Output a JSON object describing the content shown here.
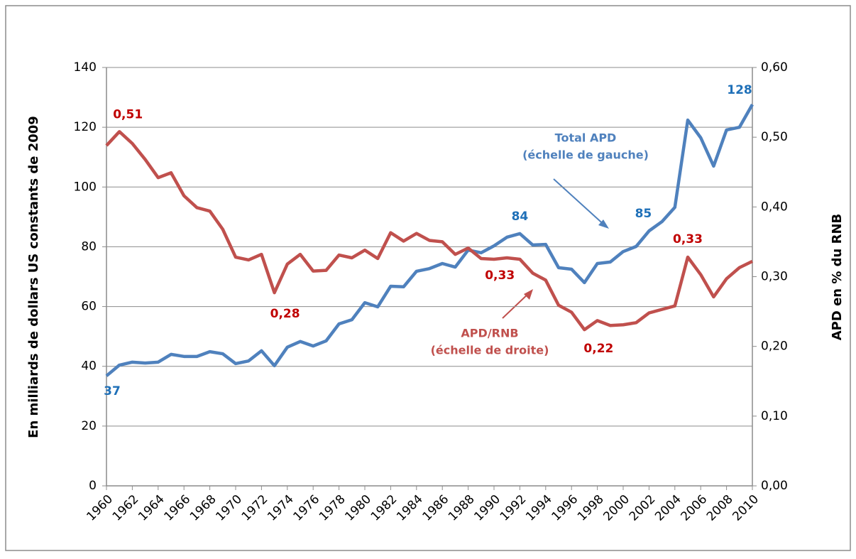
{
  "chart_data": {
    "type": "line",
    "x": [
      1960,
      1961,
      1962,
      1963,
      1964,
      1965,
      1966,
      1967,
      1968,
      1969,
      1970,
      1971,
      1972,
      1973,
      1974,
      1975,
      1976,
      1977,
      1978,
      1979,
      1980,
      1981,
      1982,
      1983,
      1984,
      1985,
      1986,
      1987,
      1988,
      1989,
      1990,
      1991,
      1992,
      1993,
      1994,
      1995,
      1996,
      1997,
      1998,
      1999,
      2000,
      2001,
      2002,
      2003,
      2004,
      2005,
      2006,
      2007,
      2008,
      2009,
      2010
    ],
    "xlim": [
      1960,
      2010
    ],
    "xticks": [
      1960,
      1962,
      1964,
      1966,
      1968,
      1970,
      1972,
      1974,
      1976,
      1978,
      1980,
      1982,
      1984,
      1986,
      1988,
      1990,
      1992,
      1994,
      1996,
      1998,
      2000,
      2002,
      2004,
      2006,
      2008,
      2010
    ],
    "ylabel": "En milliards de dollars US constants de 2009",
    "y2label": "APD en % du RNB",
    "ylim": [
      0,
      140
    ],
    "yticks": [
      0,
      20,
      40,
      60,
      80,
      100,
      120,
      140
    ],
    "y2lim": [
      0,
      0.6
    ],
    "y2ticks": [
      {
        "value": 0,
        "label": "0,00"
      },
      {
        "value": 0.1,
        "label": "0,10"
      },
      {
        "value": 0.2,
        "label": "0,20"
      },
      {
        "value": 0.3,
        "label": "0,30"
      },
      {
        "value": 0.4,
        "label": "0,40"
      },
      {
        "value": 0.5,
        "label": "0,50"
      },
      {
        "value": 0.6,
        "label": "0,60"
      }
    ],
    "grid": true,
    "series": [
      {
        "color": "#4f81bd",
        "label_color": "#1f70b8",
        "values": [
          36.8,
          40.4,
          41.4,
          41.1,
          41.4,
          44.0,
          43.3,
          43.3,
          44.9,
          44.2,
          40.9,
          41.8,
          45.2,
          40.2,
          46.4,
          48.3,
          46.8,
          48.5,
          54.2,
          55.6,
          61.3,
          59.9,
          66.8,
          66.6,
          71.8,
          72.7,
          74.4,
          73.2,
          78.9,
          78.0,
          80.3,
          83.2,
          84.4,
          80.6,
          80.8,
          73.0,
          72.5,
          68.0,
          74.4,
          74.9,
          78.4,
          80.1,
          85.3,
          88.4,
          93.2,
          122.4,
          116.5,
          107.0,
          119.1,
          120.0,
          127.6
        ],
        "value_labels": [
          "37",
          null,
          null,
          null,
          null,
          null,
          null,
          null,
          null,
          null,
          null,
          null,
          null,
          null,
          null,
          null,
          null,
          null,
          null,
          null,
          null,
          null,
          null,
          null,
          null,
          null,
          null,
          null,
          null,
          null,
          null,
          null,
          "84",
          null,
          null,
          null,
          null,
          null,
          null,
          null,
          null,
          null,
          "85",
          null,
          null,
          null,
          null,
          null,
          null,
          null,
          "128"
        ]
      },
      {
        "color": "#c0504d",
        "label_color": "#c00000",
        "axis": "y2",
        "values": [
          0.488,
          0.508,
          0.491,
          0.468,
          0.442,
          0.449,
          0.416,
          0.399,
          0.394,
          0.368,
          0.328,
          0.324,
          0.332,
          0.277,
          0.318,
          0.332,
          0.308,
          0.309,
          0.331,
          0.327,
          0.338,
          0.326,
          0.363,
          0.351,
          0.362,
          0.352,
          0.35,
          0.332,
          0.341,
          0.326,
          0.325,
          0.327,
          0.325,
          0.305,
          0.295,
          0.259,
          0.249,
          0.224,
          0.237,
          0.23,
          0.231,
          0.234,
          0.248,
          0.253,
          0.258,
          0.328,
          0.303,
          0.271,
          0.297,
          0.313,
          0.322
        ],
        "value_labels": [
          null,
          "0,51",
          null,
          null,
          null,
          null,
          null,
          null,
          null,
          null,
          null,
          null,
          null,
          "0,28",
          null,
          null,
          null,
          null,
          null,
          null,
          null,
          null,
          null,
          null,
          null,
          null,
          null,
          null,
          null,
          null,
          null,
          "0,33",
          null,
          null,
          null,
          null,
          null,
          "0,22",
          null,
          null,
          null,
          null,
          null,
          null,
          null,
          "0,33",
          null,
          null,
          null,
          null,
          null
        ]
      }
    ],
    "annotations": [
      [
        "Total APD",
        "(échelle de gauche)"
      ],
      [
        "APD/RNB",
        "(échelle de droite)"
      ]
    ]
  }
}
